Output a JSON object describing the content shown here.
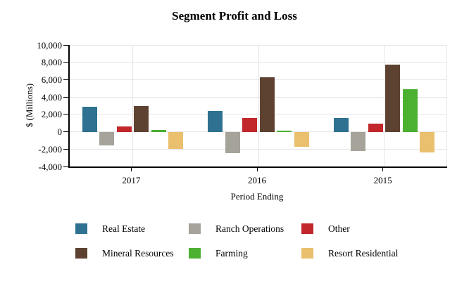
{
  "chart_data": {
    "type": "bar",
    "title": "Segment Profit and Loss",
    "categories": [
      "2017",
      "2016",
      "2015"
    ],
    "series": [
      {
        "name": "Real Estate",
        "color": "#2E7190",
        "values": [
          2900,
          2400,
          1600
        ]
      },
      {
        "name": "Ranch Operations",
        "color": "#A5A39A",
        "values": [
          -1600,
          -2500,
          -2200
        ]
      },
      {
        "name": "Other",
        "color": "#C1272B",
        "values": [
          600,
          1600,
          900
        ]
      },
      {
        "name": "Mineral Resources",
        "color": "#5D4231",
        "values": [
          3000,
          6300,
          7700
        ]
      },
      {
        "name": "Farming",
        "color": "#4CB030",
        "values": [
          200,
          100,
          4900
        ]
      },
      {
        "name": "Resort Residential",
        "color": "#EAC06E",
        "values": [
          -2000,
          -1700,
          -2400
        ]
      }
    ],
    "xlabel": "Period Ending",
    "ylabel": "$ (Millions)",
    "ylim": [
      -4000,
      10000
    ],
    "ytick_step": 2000,
    "ytick_labels": [
      "10,000",
      "8,000",
      "6,000",
      "4,000",
      "2,000",
      "0",
      "-2,000",
      "-4,000"
    ],
    "grid": true,
    "legend_position": "bottom"
  },
  "colors": {
    "background": "#FFFFFF",
    "axis": "#000000",
    "gridline": "#E6E6E6",
    "text": "#000000"
  }
}
